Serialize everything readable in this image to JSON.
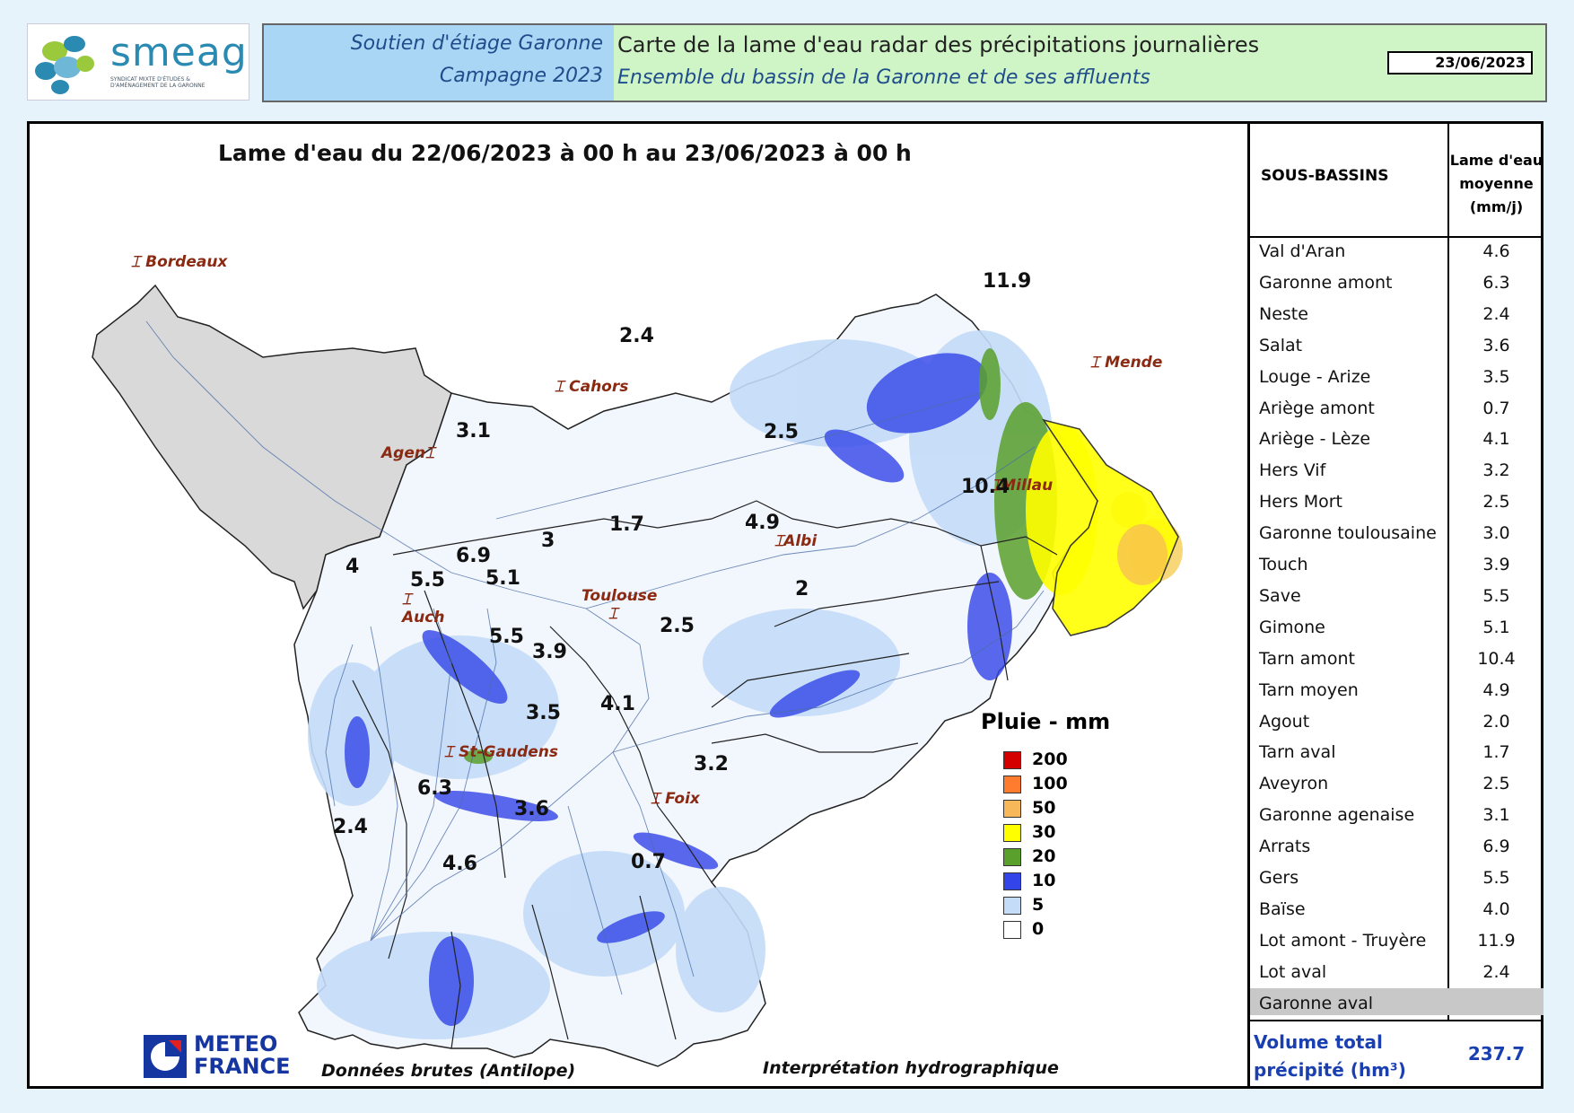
{
  "logo": {
    "brand": "smeag",
    "subtitle": "SYNDICAT MIXTE D'ÉTUDES & D'AMÉNAGEMENT DE LA GARONNE"
  },
  "header": {
    "left_line1": "Soutien d'étiage Garonne",
    "left_line2": "Campagne 2023",
    "right_line1": "Carte de la lame d'eau radar des précipitations journalières",
    "right_line2": "Ensemble du bassin de la Garonne et de ses affluents",
    "date": "23/06/2023"
  },
  "map": {
    "title": "Lame d'eau du 22/06/2023 à 00 h au 23/06/2023 à 00 h",
    "cities": [
      "Bordeaux",
      "Cahors",
      "Mende",
      "Agen",
      "Millau",
      "Albi",
      "Auch",
      "Toulouse",
      "St-Gaudens",
      "Foix"
    ],
    "values": [
      "11.9",
      "2.4",
      "3.1",
      "2.5",
      "10.4",
      "1.7",
      "4.9",
      "3",
      "6.9",
      "4",
      "5.5",
      "5.1",
      "2",
      "2.5",
      "5.5",
      "3.9",
      "4.1",
      "3.5",
      "3.2",
      "6.3",
      "3.6",
      "2.4",
      "4.6",
      "0.7"
    ],
    "legend": {
      "title": "Pluie - mm",
      "items": [
        {
          "label": "200",
          "color": "#d40000"
        },
        {
          "label": "100",
          "color": "#ff7b2e"
        },
        {
          "label": "50",
          "color": "#f7b85a"
        },
        {
          "label": "30",
          "color": "#ffff00"
        },
        {
          "label": "20",
          "color": "#5aa02c"
        },
        {
          "label": "10",
          "color": "#3344e8"
        },
        {
          "label": "5",
          "color": "#c4dcf8"
        },
        {
          "label": "0",
          "color": "#ffffff"
        }
      ]
    },
    "footer_left": "Données brutes (Antilope)",
    "footer_right": "Interprétation hydrographique",
    "meteo_line1": "METEO",
    "meteo_line2": "FRANCE"
  },
  "table": {
    "col1": "SOUS-BASSINS",
    "col2_line1": "Lame d'eau",
    "col2_line2": "moyenne",
    "col2_line3": "(mm/j)",
    "rows": [
      {
        "name": "Val d'Aran",
        "value": "4.6"
      },
      {
        "name": "Garonne amont",
        "value": "6.3"
      },
      {
        "name": "Neste",
        "value": "2.4"
      },
      {
        "name": "Salat",
        "value": "3.6"
      },
      {
        "name": "Louge - Arize",
        "value": "3.5"
      },
      {
        "name": "Ariège amont",
        "value": "0.7"
      },
      {
        "name": "Ariège - Lèze",
        "value": "4.1"
      },
      {
        "name": "Hers Vif",
        "value": "3.2"
      },
      {
        "name": "Hers Mort",
        "value": "2.5"
      },
      {
        "name": "Garonne toulousaine",
        "value": "3.0"
      },
      {
        "name": "Touch",
        "value": "3.9"
      },
      {
        "name": "Save",
        "value": "5.5"
      },
      {
        "name": "Gimone",
        "value": "5.1"
      },
      {
        "name": "Tarn amont",
        "value": "10.4"
      },
      {
        "name": "Tarn moyen",
        "value": "4.9"
      },
      {
        "name": "Agout",
        "value": "2.0"
      },
      {
        "name": "Tarn aval",
        "value": "1.7"
      },
      {
        "name": "Aveyron",
        "value": "2.5"
      },
      {
        "name": "Garonne agenaise",
        "value": "3.1"
      },
      {
        "name": "Arrats",
        "value": "6.9"
      },
      {
        "name": "Gers",
        "value": "5.5"
      },
      {
        "name": "Baïse",
        "value": "4.0"
      },
      {
        "name": "Lot amont - Truyère",
        "value": "11.9"
      },
      {
        "name": "Lot aval",
        "value": "2.4"
      },
      {
        "name": "Garonne aval",
        "value": ""
      }
    ],
    "total_line1": "Volume total",
    "total_line2": "précipité (hm³)",
    "total_value": "237.7"
  }
}
